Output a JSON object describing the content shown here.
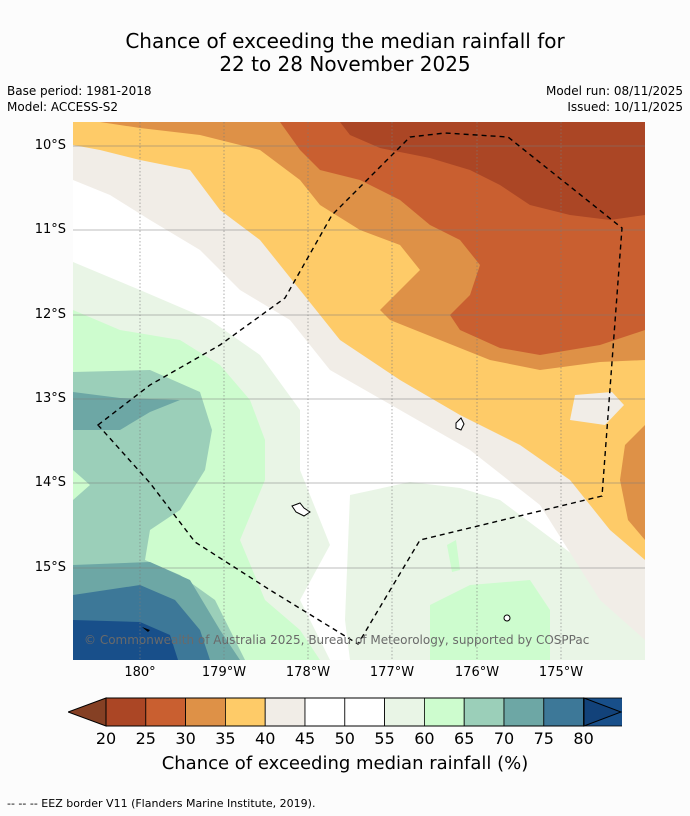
{
  "title_line1": "Chance of exceeding the median rainfall for",
  "title_line2": "22 to 28 November 2025",
  "meta_left": [
    "Base period: 1981-2018",
    "Model: ACCESS-S2"
  ],
  "meta_right": [
    "Model run: 08/11/2025",
    "Issued: 10/11/2025"
  ],
  "lat_labels": [
    "10°S",
    "11°S",
    "12°S",
    "13°S",
    "14°S",
    "15°S"
  ],
  "lon_labels": [
    "180°",
    "179°W",
    "178°W",
    "177°W",
    "176°W",
    "175°W"
  ],
  "copyright": "© Commonwealth of Australia 2025, Bureau of Meteorology, supported by COSPPac",
  "colorbar": {
    "ticks": [
      "20",
      "25",
      "30",
      "35",
      "40",
      "45",
      "50",
      "55",
      "60",
      "65",
      "70",
      "75",
      "80"
    ],
    "colors": [
      "#ab4625",
      "#c95f30",
      "#de9147",
      "#fecb68",
      "#f1ede7",
      "#ffffff",
      "#ffffff",
      "#e9f5e6",
      "#cdfcce",
      "#9bcfb9",
      "#6da7a5",
      "#3d7898",
      "#184f8a"
    ],
    "title": "Chance of exceeding median rainfall (%)"
  },
  "footer": "--  --  -- EEZ border V11 (Flanders Marine Institute, 2019)."
}
